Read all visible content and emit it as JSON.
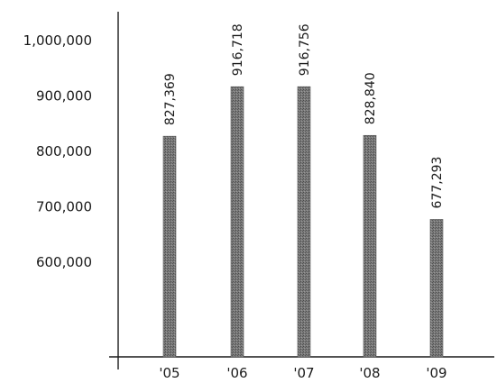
{
  "chart_data": {
    "type": "bar",
    "title": "",
    "xlabel": "",
    "ylabel": "",
    "categories": [
      "'05",
      "'06",
      "'07",
      "'08",
      "'09"
    ],
    "values": [
      827369,
      916718,
      916756,
      828840,
      677293
    ],
    "data_labels": [
      "827,369",
      "916,718",
      "916,756",
      "828,840",
      "677,293"
    ],
    "y_ticks": [
      {
        "value": 600000,
        "label": "600,000"
      },
      {
        "value": 700000,
        "label": "700,000"
      },
      {
        "value": 800000,
        "label": "800,000"
      },
      {
        "value": 900000,
        "label": "900,000"
      },
      {
        "value": 1000000,
        "label": "1,000,000"
      }
    ],
    "ylim": [
      300000,
      1000000
    ],
    "grid": false,
    "legend": "none",
    "bar_color": "#6e6e6e",
    "axis_color": "#1a1a1a"
  }
}
